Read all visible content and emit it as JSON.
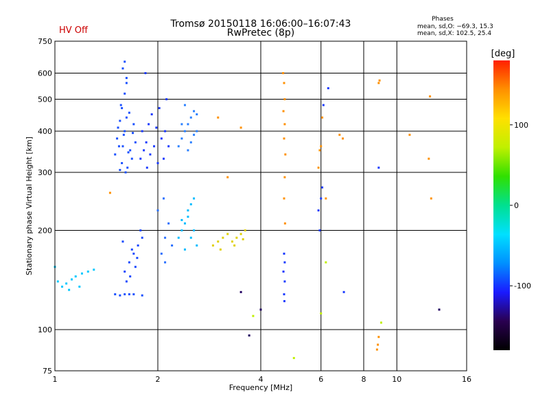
{
  "header": {
    "title_line1": "Tromsø 20150118 16:06:00–16:07:43",
    "title_line2": "RwPretec (8p)",
    "status": "HV Off"
  },
  "phases": {
    "title": "Phases",
    "line1": "mean, sd,O: −69.3, 15.3",
    "line2": "mean, sd,X: 102.5, 25.4"
  },
  "chart_data": {
    "type": "scatter",
    "xlabel": "Frequency [MHz]",
    "ylabel": "Stationary phase Virtual Height [km]",
    "x_scale": "log2",
    "y_scale": "log",
    "xlim": [
      1,
      16
    ],
    "ylim": [
      75,
      750
    ],
    "x_ticks": [
      1,
      2,
      4,
      6,
      8,
      10,
      16
    ],
    "y_ticks": [
      75,
      100,
      200,
      300,
      400,
      500,
      600,
      750
    ],
    "grid": true,
    "colorbar": {
      "label": "[deg]",
      "range": [
        -180,
        180
      ],
      "ticks": [
        100,
        0,
        -100
      ],
      "colors": [
        "#000000",
        "#2a0050",
        "#1a1aff",
        "#0090ff",
        "#00e0ff",
        "#00e090",
        "#30e000",
        "#c0f000",
        "#ffe000",
        "#ff9000",
        "#ff2000"
      ]
    },
    "series": [
      {
        "color": "#1a50ff",
        "points": [
          [
            1.58,
            620
          ],
          [
            1.62,
            580
          ],
          [
            1.6,
            520
          ],
          [
            1.56,
            480
          ],
          [
            1.65,
            455
          ],
          [
            1.55,
            430
          ],
          [
            1.6,
            400
          ],
          [
            1.7,
            420
          ],
          [
            1.52,
            380
          ],
          [
            1.58,
            360
          ],
          [
            1.64,
            345
          ],
          [
            1.5,
            340
          ],
          [
            1.57,
            320
          ],
          [
            1.63,
            310
          ],
          [
            1.55,
            305
          ],
          [
            1.68,
            330
          ],
          [
            1.72,
            370
          ],
          [
            1.62,
            440
          ],
          [
            1.53,
            410
          ],
          [
            1.59,
            390
          ],
          [
            1.66,
            350
          ],
          [
            1.54,
            360
          ],
          [
            1.61,
            300
          ],
          [
            1.69,
            395
          ],
          [
            1.57,
            470
          ],
          [
            1.62,
            560
          ],
          [
            1.6,
            650
          ]
        ]
      },
      {
        "color": "#1a3aff",
        "points": [
          [
            1.78,
            330
          ],
          [
            1.82,
            350
          ],
          [
            1.85,
            370
          ],
          [
            1.9,
            340
          ],
          [
            1.95,
            360
          ],
          [
            2.0,
            320
          ],
          [
            2.05,
            380
          ],
          [
            1.88,
            420
          ],
          [
            1.92,
            450
          ],
          [
            2.02,
            470
          ],
          [
            1.8,
            400
          ],
          [
            1.98,
            410
          ],
          [
            2.1,
            400
          ],
          [
            2.15,
            360
          ],
          [
            1.86,
            310
          ],
          [
            2.08,
            330
          ],
          [
            1.84,
            600
          ],
          [
            2.12,
            500
          ]
        ]
      },
      {
        "color": "#2a80ff",
        "points": [
          [
            2.3,
            360
          ],
          [
            2.35,
            380
          ],
          [
            2.4,
            400
          ],
          [
            2.45,
            420
          ],
          [
            2.5,
            440
          ],
          [
            2.55,
            460
          ],
          [
            2.6,
            400
          ],
          [
            2.5,
            370
          ],
          [
            2.45,
            350
          ],
          [
            2.35,
            420
          ],
          [
            2.6,
            450
          ],
          [
            2.4,
            480
          ],
          [
            2.55,
            390
          ]
        ]
      },
      {
        "color": "#1a4aff",
        "points": [
          [
            1.6,
            150
          ],
          [
            1.65,
            160
          ],
          [
            1.7,
            170
          ],
          [
            1.75,
            180
          ],
          [
            1.8,
            190
          ],
          [
            1.62,
            140
          ],
          [
            1.68,
            175
          ],
          [
            1.72,
            155
          ],
          [
            1.78,
            200
          ],
          [
            1.58,
            185
          ],
          [
            1.66,
            145
          ],
          [
            1.74,
            165
          ]
        ]
      },
      {
        "color": "#1a50ff",
        "points": [
          [
            1.5,
            128
          ],
          [
            1.6,
            128
          ],
          [
            1.7,
            128
          ],
          [
            1.8,
            127
          ],
          [
            1.55,
            127
          ],
          [
            1.65,
            128
          ]
        ]
      },
      {
        "color": "#2a70ff",
        "points": [
          [
            2.05,
            170
          ],
          [
            2.1,
            190
          ],
          [
            2.15,
            210
          ],
          [
            2.2,
            180
          ],
          [
            2.1,
            160
          ],
          [
            2.0,
            230
          ],
          [
            2.08,
            250
          ]
        ]
      },
      {
        "color": "#00bcff",
        "points": [
          [
            2.3,
            190
          ],
          [
            2.35,
            200
          ],
          [
            2.4,
            210
          ],
          [
            2.45,
            220
          ],
          [
            2.5,
            240
          ],
          [
            2.55,
            200
          ],
          [
            2.6,
            180
          ],
          [
            2.4,
            175
          ],
          [
            2.45,
            230
          ],
          [
            2.5,
            190
          ],
          [
            2.35,
            215
          ],
          [
            2.55,
            250
          ]
        ]
      },
      {
        "color": "#00c8ff",
        "points": [
          [
            1.02,
            140
          ],
          [
            1.05,
            135
          ],
          [
            1.08,
            138
          ],
          [
            1.12,
            142
          ],
          [
            1.15,
            145
          ],
          [
            1.2,
            148
          ],
          [
            1.25,
            150
          ],
          [
            1.3,
            152
          ],
          [
            1.0,
            155
          ],
          [
            1.1,
            132
          ],
          [
            1.18,
            135
          ]
        ]
      },
      {
        "color": "#e0d000",
        "points": [
          [
            2.9,
            180
          ],
          [
            3.0,
            185
          ],
          [
            3.1,
            190
          ],
          [
            3.2,
            195
          ],
          [
            3.3,
            185
          ],
          [
            3.4,
            190
          ],
          [
            3.5,
            195
          ],
          [
            3.6,
            200
          ],
          [
            3.05,
            175
          ],
          [
            3.35,
            180
          ],
          [
            3.55,
            188
          ]
        ]
      },
      {
        "color": "#ff9000",
        "points": [
          [
            4.65,
            600
          ],
          [
            4.68,
            560
          ],
          [
            4.7,
            500
          ],
          [
            4.66,
            460
          ],
          [
            4.7,
            420
          ],
          [
            4.68,
            380
          ],
          [
            4.72,
            340
          ],
          [
            4.7,
            290
          ],
          [
            4.68,
            250
          ],
          [
            4.71,
            210
          ]
        ]
      },
      {
        "color": "#1a3aff",
        "points": [
          [
            4.68,
            170
          ],
          [
            4.7,
            160
          ],
          [
            4.66,
            150
          ],
          [
            4.7,
            140
          ],
          [
            4.68,
            128
          ],
          [
            4.69,
            122
          ]
        ]
      },
      {
        "color": "#ff9000",
        "points": [
          [
            5.9,
            310
          ],
          [
            5.95,
            350
          ],
          [
            6.0,
            360
          ],
          [
            6.05,
            440
          ],
          [
            6.2,
            250
          ],
          [
            6.8,
            390
          ],
          [
            6.95,
            380
          ],
          [
            3.0,
            440
          ],
          [
            3.5,
            410
          ],
          [
            3.2,
            290
          ],
          [
            1.45,
            260
          ],
          [
            10.9,
            390
          ]
        ]
      },
      {
        "color": "#1a3aff",
        "points": [
          [
            5.9,
            230
          ],
          [
            6.0,
            250
          ],
          [
            6.05,
            270
          ],
          [
            5.95,
            200
          ],
          [
            6.1,
            480
          ],
          [
            6.3,
            540
          ],
          [
            7.0,
            130
          ],
          [
            8.85,
            310
          ]
        ]
      },
      {
        "color": "#ff9000",
        "points": [
          [
            8.9,
            570
          ],
          [
            8.85,
            560
          ],
          [
            12.5,
            510
          ],
          [
            12.4,
            330
          ],
          [
            12.6,
            250
          ],
          [
            8.85,
            95
          ],
          [
            8.8,
            90
          ],
          [
            8.75,
            87
          ]
        ]
      },
      {
        "color": "#c0f000",
        "points": [
          [
            5.0,
            82
          ],
          [
            6.0,
            112
          ],
          [
            6.2,
            160
          ],
          [
            3.8,
            110
          ],
          [
            9.0,
            105
          ]
        ]
      },
      {
        "color": "#200060",
        "points": [
          [
            3.7,
            96
          ],
          [
            13.3,
            115
          ],
          [
            3.5,
            130
          ],
          [
            4.0,
            115
          ]
        ]
      }
    ]
  }
}
